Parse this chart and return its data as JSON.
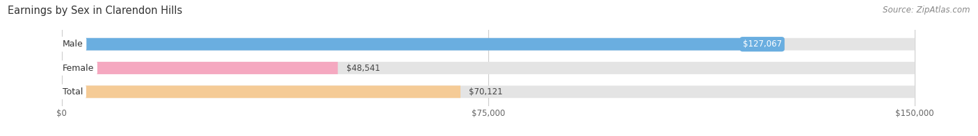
{
  "title": "Earnings by Sex in Clarendon Hills",
  "source": "Source: ZipAtlas.com",
  "categories": [
    "Male",
    "Female",
    "Total"
  ],
  "values": [
    127067,
    48541,
    70121
  ],
  "bar_colors": [
    "#6aaee0",
    "#f5a8c0",
    "#f5cb96"
  ],
  "bar_bg_color": "#e4e4e4",
  "label_bg_color": "#ffffff",
  "xlim": [
    0,
    150000
  ],
  "xtick_labels": [
    "$0",
    "$75,000",
    "$150,000"
  ],
  "xtick_values": [
    0,
    75000,
    150000
  ],
  "value_labels": [
    "$127,067",
    "$48,541",
    "$70,121"
  ],
  "title_fontsize": 10.5,
  "source_fontsize": 8.5,
  "bar_height": 0.52,
  "figsize": [
    14.06,
    1.96
  ],
  "dpi": 100
}
